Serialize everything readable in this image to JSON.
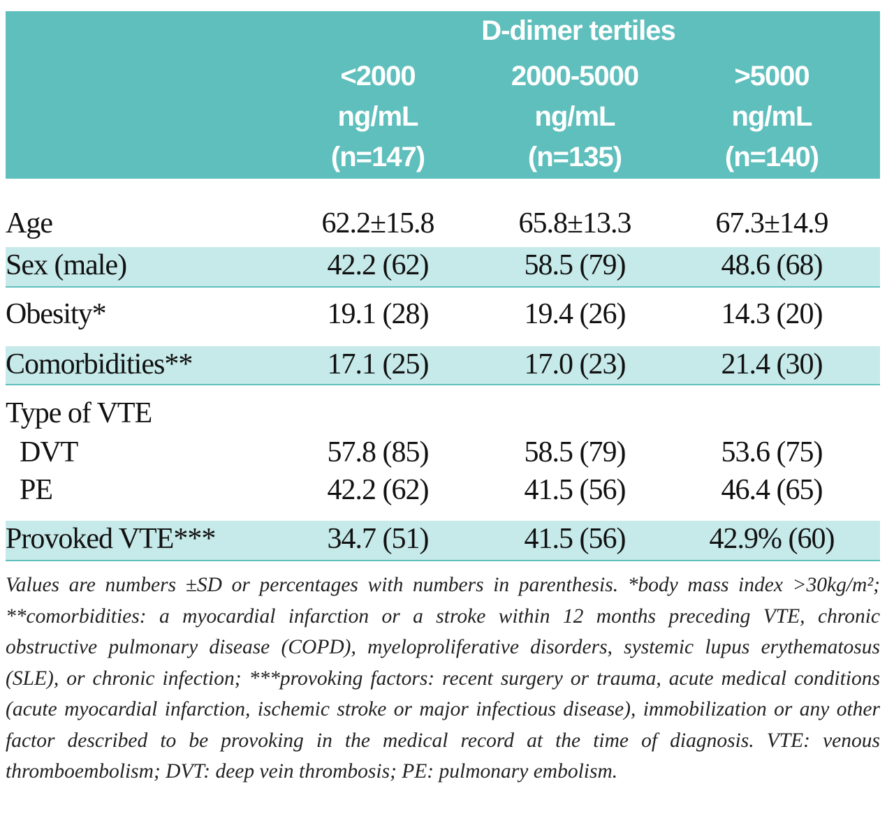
{
  "header": {
    "group_label": "D-dimer tertiles",
    "columns": [
      {
        "range": "<2000",
        "unit": "ng/mL",
        "n": "(n=147)"
      },
      {
        "range": "2000-5000",
        "unit": "ng/mL",
        "n": "(n=135)"
      },
      {
        "range": ">5000",
        "unit": "ng/mL",
        "n": "(n=140)"
      }
    ]
  },
  "rows": {
    "age": {
      "label": "Age",
      "values": [
        "62.2±15.8",
        "65.8±13.3",
        "67.3±14.9"
      ]
    },
    "sex": {
      "label": "Sex (male)",
      "values": [
        "42.2 (62)",
        "58.5 (79)",
        "48.6 (68)"
      ]
    },
    "obesity": {
      "label": "Obesity*",
      "values": [
        "19.1 (28)",
        "19.4 (26)",
        "14.3 (20)"
      ]
    },
    "comorbidities": {
      "label": "Comorbidities**",
      "values": [
        "17.1 (25)",
        "17.0 (23)",
        "21.4 (30)"
      ]
    },
    "type_of_vte": {
      "label": "Type of VTE",
      "dvt": {
        "label": "DVT",
        "values": [
          "57.8 (85)",
          "58.5 (79)",
          "53.6 (75)"
        ]
      },
      "pe": {
        "label": "PE",
        "values": [
          "42.2 (62)",
          "41.5 (56)",
          "46.4 (65)"
        ]
      }
    },
    "provoked": {
      "label": "Provoked VTE***",
      "values": [
        "34.7 (51)",
        "41.5 (56)",
        "42.9% (60)"
      ]
    }
  },
  "footnote": "Values are numbers ±SD or percentages with numbers in parenthesis. *body mass index >30kg/m²; **comorbidities: a myocardial infarction or a stroke within 12 months preceding VTE, chronic obstructive pulmonary disease (COPD), myeloproliferative disorders, systemic lupus erythematosus (SLE), or chronic infection; ***provoking factors: recent surgery or trauma, acute medical conditions (acute myocardial infarction, ischemic stroke or major infectious disease), immobilization or any other factor described to be provoking in the medical record at the time of diagnosis. VTE: venous thromboembolism; DVT: deep vein thrombosis; PE: pulmonary embolism.",
  "colors": {
    "header_bg": "#5fbfbd",
    "shaded_row": "#c6e9e9"
  }
}
